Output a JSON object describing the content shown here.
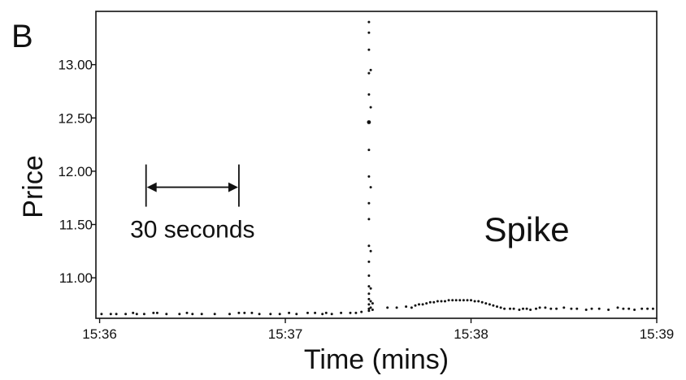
{
  "panel_label": "B",
  "chart_data": {
    "type": "scatter",
    "xlabel": "Time (mins)",
    "ylabel": "Price",
    "x_ticks": [
      "15:36",
      "15:37",
      "15:38",
      "15:39"
    ],
    "x_tick_values": [
      36,
      37,
      38,
      39
    ],
    "y_ticks": [
      "11.00",
      "11.50",
      "12.00",
      "12.50",
      "13.00"
    ],
    "y_tick_values": [
      11.0,
      11.5,
      12.0,
      12.5,
      13.0
    ],
    "xlim": [
      35.98,
      39.0
    ],
    "ylim": [
      10.62,
      13.5
    ],
    "grid": false,
    "annotations": {
      "interval_label": "30 seconds",
      "interval_start": 36.25,
      "interval_end": 36.75,
      "interval_y": 11.85,
      "spike_label": "Spike",
      "spike_label_x": 38.3,
      "spike_label_y": 11.45
    },
    "series": [
      {
        "color": "#111111",
        "points": [
          [
            36.01,
            10.66
          ],
          [
            36.06,
            10.66
          ],
          [
            36.09,
            10.66
          ],
          [
            36.14,
            10.66
          ],
          [
            36.18,
            10.67
          ],
          [
            36.2,
            10.66
          ],
          [
            36.24,
            10.66
          ],
          [
            36.29,
            10.67
          ],
          [
            36.31,
            10.67
          ],
          [
            36.36,
            10.66
          ],
          [
            36.43,
            10.66
          ],
          [
            36.47,
            10.67
          ],
          [
            36.5,
            10.66
          ],
          [
            36.55,
            10.66
          ],
          [
            36.62,
            10.66
          ],
          [
            36.7,
            10.66
          ],
          [
            36.75,
            10.67
          ],
          [
            36.78,
            10.67
          ],
          [
            36.82,
            10.67
          ],
          [
            36.86,
            10.66
          ],
          [
            36.92,
            10.66
          ],
          [
            36.97,
            10.66
          ],
          [
            37.02,
            10.67
          ],
          [
            37.06,
            10.66
          ],
          [
            37.12,
            10.67
          ],
          [
            37.16,
            10.67
          ],
          [
            37.2,
            10.66
          ],
          [
            37.22,
            10.67
          ],
          [
            37.25,
            10.66
          ],
          [
            37.3,
            10.67
          ],
          [
            37.35,
            10.67
          ],
          [
            37.38,
            10.67
          ],
          [
            37.41,
            10.68
          ],
          [
            37.45,
            13.4
          ],
          [
            37.45,
            13.3
          ],
          [
            37.45,
            13.14
          ],
          [
            37.45,
            12.92
          ],
          [
            37.45,
            12.72
          ],
          [
            37.45,
            12.46
          ],
          [
            37.45,
            12.2
          ],
          [
            37.45,
            11.95
          ],
          [
            37.45,
            11.7
          ],
          [
            37.45,
            11.55
          ],
          [
            37.45,
            11.3
          ],
          [
            37.45,
            11.15
          ],
          [
            37.45,
            11.02
          ],
          [
            37.45,
            10.92
          ],
          [
            37.45,
            10.85
          ],
          [
            37.45,
            10.8
          ],
          [
            37.45,
            10.75
          ],
          [
            37.45,
            10.71
          ],
          [
            37.45,
            10.69
          ],
          [
            37.46,
            12.95
          ],
          [
            37.46,
            12.6
          ],
          [
            37.46,
            11.85
          ],
          [
            37.46,
            11.25
          ],
          [
            37.46,
            10.9
          ],
          [
            37.46,
            10.78
          ],
          [
            37.46,
            10.72
          ],
          [
            37.47,
            10.76
          ],
          [
            37.47,
            10.7
          ],
          [
            37.55,
            10.72
          ],
          [
            37.6,
            10.72
          ],
          [
            37.65,
            10.73
          ],
          [
            37.68,
            10.72
          ],
          [
            37.7,
            10.74
          ],
          [
            37.72,
            10.75
          ],
          [
            37.74,
            10.75
          ],
          [
            37.76,
            10.76
          ],
          [
            37.78,
            10.77
          ],
          [
            37.8,
            10.77
          ],
          [
            37.82,
            10.78
          ],
          [
            37.84,
            10.78
          ],
          [
            37.86,
            10.78
          ],
          [
            37.88,
            10.79
          ],
          [
            37.9,
            10.79
          ],
          [
            37.92,
            10.79
          ],
          [
            37.94,
            10.79
          ],
          [
            37.96,
            10.79
          ],
          [
            37.98,
            10.79
          ],
          [
            38.0,
            10.79
          ],
          [
            38.02,
            10.78
          ],
          [
            38.04,
            10.78
          ],
          [
            38.06,
            10.77
          ],
          [
            38.08,
            10.76
          ],
          [
            38.1,
            10.75
          ],
          [
            38.12,
            10.74
          ],
          [
            38.14,
            10.73
          ],
          [
            38.16,
            10.72
          ],
          [
            38.18,
            10.71
          ],
          [
            38.21,
            10.71
          ],
          [
            38.23,
            10.71
          ],
          [
            38.26,
            10.7
          ],
          [
            38.28,
            10.71
          ],
          [
            38.3,
            10.71
          ],
          [
            38.32,
            10.7
          ],
          [
            38.35,
            10.71
          ],
          [
            38.37,
            10.72
          ],
          [
            38.4,
            10.72
          ],
          [
            38.43,
            10.71
          ],
          [
            38.46,
            10.71
          ],
          [
            38.5,
            10.72
          ],
          [
            38.54,
            10.71
          ],
          [
            38.57,
            10.71
          ],
          [
            38.62,
            10.7
          ],
          [
            38.65,
            10.71
          ],
          [
            38.69,
            10.71
          ],
          [
            38.74,
            10.7
          ],
          [
            38.79,
            10.72
          ],
          [
            38.82,
            10.71
          ],
          [
            38.85,
            10.71
          ],
          [
            38.88,
            10.7
          ],
          [
            38.92,
            10.71
          ],
          [
            38.95,
            10.71
          ],
          [
            38.98,
            10.71
          ]
        ]
      }
    ]
  }
}
